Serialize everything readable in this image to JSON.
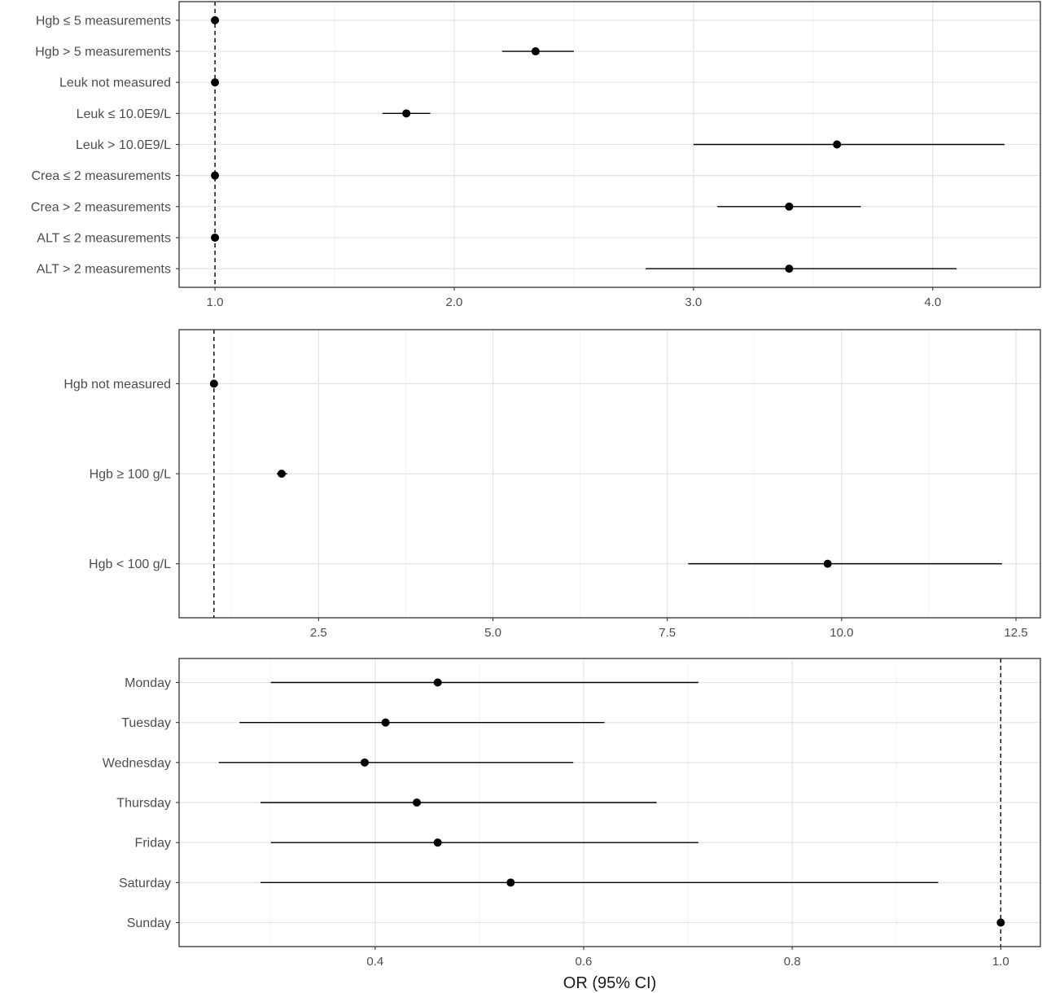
{
  "chart_data": [
    {
      "type": "forest",
      "reference_value": 1.0,
      "xlim": [
        0.85,
        4.45
      ],
      "x_ticks": [
        1.0,
        2.0,
        3.0,
        4.0
      ],
      "x_tick_labels": [
        "1.0",
        "2.0",
        "3.0",
        "4.0"
      ],
      "grid": true,
      "rows": [
        {
          "label": "Hgb ≤ 5 measurements",
          "or": 1.0,
          "lo": 1.0,
          "hi": 1.0
        },
        {
          "label": "Hgb > 5 measurements",
          "or": 2.34,
          "lo": 2.2,
          "hi": 2.5
        },
        {
          "label": "Leuk not measured",
          "or": 1.0,
          "lo": 1.0,
          "hi": 1.0
        },
        {
          "label": "Leuk ≤ 10.0E9/L",
          "or": 1.8,
          "lo": 1.7,
          "hi": 1.9
        },
        {
          "label": "Leuk > 10.0E9/L",
          "or": 3.6,
          "lo": 3.0,
          "hi": 4.3
        },
        {
          "label": "Crea ≤ 2 measurements",
          "or": 1.0,
          "lo": 1.0,
          "hi": 1.0
        },
        {
          "label": "Crea > 2 measurements",
          "or": 3.4,
          "lo": 3.1,
          "hi": 3.7
        },
        {
          "label": "ALT ≤ 2 measurements",
          "or": 1.0,
          "lo": 1.0,
          "hi": 1.0
        },
        {
          "label": "ALT > 2 measurements",
          "or": 3.4,
          "lo": 2.8,
          "hi": 4.1
        }
      ]
    },
    {
      "type": "forest",
      "reference_value": 1.0,
      "xlim": [
        0.5,
        12.85
      ],
      "x_ticks": [
        2.5,
        5.0,
        7.5,
        10.0,
        12.5
      ],
      "x_tick_labels": [
        "2.5",
        "5.0",
        "7.5",
        "10.0",
        "12.5"
      ],
      "grid": true,
      "rows": [
        {
          "label": "Hgb not measured",
          "or": 1.0,
          "lo": 1.0,
          "hi": 1.0
        },
        {
          "label": "Hgb ≥ 100 g/L",
          "or": 1.97,
          "lo": 1.9,
          "hi": 2.05
        },
        {
          "label": "Hgb < 100 g/L",
          "or": 9.8,
          "lo": 7.8,
          "hi": 12.3
        }
      ]
    },
    {
      "type": "forest",
      "reference_value": 1.0,
      "xlim": [
        0.212,
        1.038
      ],
      "x_ticks": [
        0.4,
        0.6,
        0.8,
        1.0
      ],
      "x_tick_labels": [
        "0.4",
        "0.6",
        "0.8",
        "1.0"
      ],
      "grid": true,
      "xlabel": "OR (95% CI)",
      "rows": [
        {
          "label": "Monday",
          "or": 0.46,
          "lo": 0.3,
          "hi": 0.71
        },
        {
          "label": "Tuesday",
          "or": 0.41,
          "lo": 0.27,
          "hi": 0.62
        },
        {
          "label": "Wednesday",
          "or": 0.39,
          "lo": 0.25,
          "hi": 0.59
        },
        {
          "label": "Thursday",
          "or": 0.44,
          "lo": 0.29,
          "hi": 0.67
        },
        {
          "label": "Friday",
          "or": 0.46,
          "lo": 0.3,
          "hi": 0.71
        },
        {
          "label": "Saturday",
          "or": 0.53,
          "lo": 0.29,
          "hi": 0.94
        },
        {
          "label": "Sunday",
          "or": 1.0,
          "lo": 1.0,
          "hi": 1.0
        }
      ]
    }
  ]
}
